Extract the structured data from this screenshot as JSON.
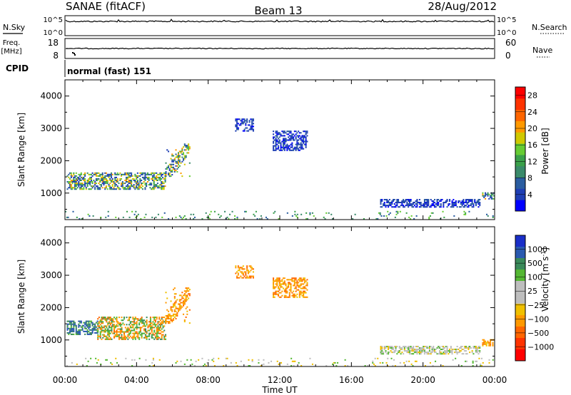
{
  "header": {
    "station": "SANAE (fitACF)",
    "beam": "Beam 13",
    "date": "28/Aug/2012"
  },
  "noise_panel": {
    "left_label": "N.Sky",
    "right_label": "N.Search",
    "left_ticks": [
      "10^5",
      "10^0"
    ],
    "right_ticks": [
      "10^5",
      "10^0"
    ]
  },
  "freq_panel": {
    "left_label_line1": "Freq.",
    "left_label_line2": "[MHz]",
    "right_label": "Nave",
    "left_ticks": [
      "18",
      "8"
    ],
    "right_ticks": [
      "60",
      "0"
    ]
  },
  "cpid": {
    "label": "CPID",
    "value": "normal (fast) 151"
  },
  "chart_data": [
    {
      "type": "heatmap",
      "name": "power",
      "ylabel": "Slant Range [km]",
      "ylim": [
        180,
        4500
      ],
      "yticks": [
        1000,
        2000,
        3000,
        4000
      ],
      "xlabel": "Time UT",
      "xlim_hours": [
        0,
        24
      ],
      "xtick_labels": [
        "00:00",
        "04:00",
        "08:00",
        "12:00",
        "16:00",
        "20:00",
        "00:00"
      ],
      "colorbar": {
        "label": "Power [dB]",
        "ticks": [
          "4",
          "8",
          "12",
          "16",
          "20",
          "24",
          "28"
        ],
        "colors": [
          "#0000ff",
          "#1f3fb4",
          "#2a5da0",
          "#3a8a6a",
          "#3aa04a",
          "#66cc33",
          "#d0c800",
          "#ff9900",
          "#ff6600",
          "#ff3300",
          "#ff0000"
        ]
      },
      "regions": [
        {
          "t0": 0.1,
          "t1": 5.6,
          "r0": 1100,
          "r1": 1600,
          "palette": "power_main"
        },
        {
          "t0": 5.6,
          "t1": 7.0,
          "r0": 1500,
          "r1": 2500,
          "palette": "power_main"
        },
        {
          "t0": 9.5,
          "t1": 10.5,
          "r0": 2900,
          "r1": 3300,
          "palette": "power_low"
        },
        {
          "t0": 11.6,
          "t1": 13.5,
          "r0": 2300,
          "r1": 2900,
          "palette": "power_low"
        },
        {
          "t0": 17.6,
          "t1": 23.2,
          "r0": 550,
          "r1": 800,
          "palette": "power_low"
        },
        {
          "t0": 23.3,
          "t1": 24.0,
          "r0": 800,
          "r1": 1000,
          "palette": "power_main"
        },
        {
          "t0": 0.0,
          "t1": 24.0,
          "r0": 180,
          "r1": 420,
          "palette": "power_near"
        }
      ]
    },
    {
      "type": "heatmap",
      "name": "velocity",
      "ylabel": "Slant Range [km]",
      "ylim": [
        180,
        4500
      ],
      "yticks": [
        1000,
        2000,
        3000,
        4000
      ],
      "xlabel": "Time UT",
      "xlim_hours": [
        0,
        24
      ],
      "xtick_labels": [
        "00:00",
        "04:00",
        "08:00",
        "12:00",
        "16:00",
        "20:00",
        "00:00"
      ],
      "colorbar": {
        "label": "Velocity [m s^-1]",
        "ticks": [
          "1000",
          "500",
          "100",
          "25",
          "−25",
          "−100",
          "−500",
          "−1000"
        ],
        "colors": [
          "#1a2fc8",
          "#2a5ab0",
          "#3a8a5a",
          "#55b833",
          "#bebebe",
          "#bebebe",
          "#f0c000",
          "#ff9900",
          "#ff6600",
          "#ff3300",
          "#ff0000"
        ]
      },
      "regions": [
        {
          "t0": 0.1,
          "t1": 1.8,
          "r0": 1150,
          "r1": 1600,
          "palette": "vel_toward"
        },
        {
          "t0": 1.8,
          "t1": 5.6,
          "r0": 1000,
          "r1": 1700,
          "palette": "vel_mixed"
        },
        {
          "t0": 5.6,
          "t1": 7.0,
          "r0": 1500,
          "r1": 2600,
          "palette": "vel_away"
        },
        {
          "t0": 9.5,
          "t1": 10.5,
          "r0": 2900,
          "r1": 3300,
          "palette": "vel_away"
        },
        {
          "t0": 11.6,
          "t1": 13.5,
          "r0": 2300,
          "r1": 2900,
          "palette": "vel_away"
        },
        {
          "t0": 17.6,
          "t1": 23.2,
          "r0": 550,
          "r1": 800,
          "palette": "vel_grey"
        },
        {
          "t0": 23.3,
          "t1": 24.0,
          "r0": 800,
          "r1": 1000,
          "palette": "vel_away"
        },
        {
          "t0": 0.0,
          "t1": 24.0,
          "r0": 180,
          "r1": 420,
          "palette": "vel_near"
        }
      ]
    }
  ]
}
